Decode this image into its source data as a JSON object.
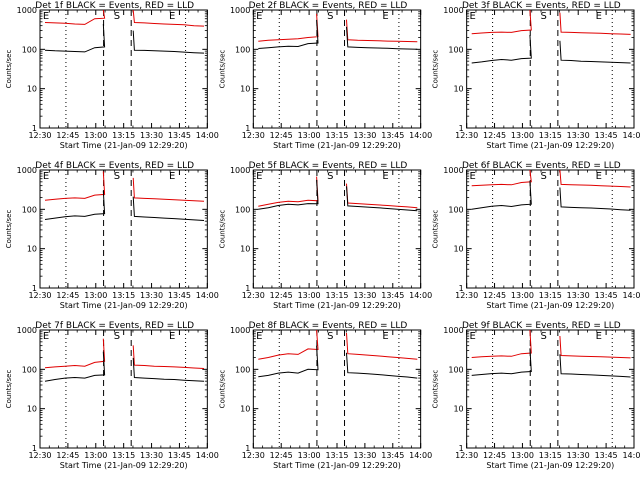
{
  "colors": {
    "events": "#000000",
    "lld": "#e00000",
    "frame": "#000000"
  },
  "chart_data": [
    {
      "type": "line",
      "title": "Det 1f BLACK = Events, RED = LLD",
      "ylabel": "Counts/sec",
      "xlabel": "Start Time (21-Jan-09 12:29:20)",
      "x_ticks": [
        "12:30",
        "12:45",
        "13:00",
        "13:15",
        "13:30",
        "13:45",
        "14:00"
      ],
      "y_ticks": [
        "1",
        "10",
        "100",
        "1000"
      ],
      "ylim": [
        1,
        1000
      ],
      "yscale": "log",
      "markers": [
        "E",
        "S",
        "E"
      ],
      "series": [
        {
          "values": [
            480,
            470,
            460,
            440,
            430,
            600,
            620,
            540,
            500,
            480,
            470,
            455,
            440,
            430,
            420,
            400,
            390
          ]
        },
        {
          "values": [
            95,
            92,
            90,
            88,
            86,
            110,
            115,
            100,
            96,
            95,
            94,
            92,
            90,
            88,
            85,
            82,
            80
          ]
        }
      ]
    },
    {
      "type": "line",
      "title": "Det 2f BLACK = Events, RED = LLD",
      "ylabel": "Counts/sec",
      "xlabel": "Start Time (21-Jan-09 12:29:20)",
      "x_ticks": [
        "12:30",
        "12:45",
        "13:00",
        "13:15",
        "13:30",
        "13:45",
        "14:00"
      ],
      "y_ticks": [
        "1",
        "10",
        "100",
        "1000"
      ],
      "ylim": [
        1,
        1000
      ],
      "yscale": "log",
      "markers": [
        "E",
        "S",
        "E"
      ],
      "series": [
        {
          "values": [
            160,
            170,
            175,
            180,
            185,
            200,
            210,
            190,
            180,
            175,
            170,
            168,
            165,
            162,
            160,
            158,
            155
          ]
        },
        {
          "values": [
            105,
            110,
            115,
            120,
            118,
            140,
            145,
            125,
            118,
            115,
            112,
            110,
            108,
            106,
            104,
            102,
            100
          ]
        }
      ]
    },
    {
      "type": "line",
      "title": "Det 3f BLACK = Events, RED = LLD",
      "ylabel": "Counts/sec",
      "xlabel": "Start Time (21-Jan-09 12:29:20)",
      "x_ticks": [
        "12:30",
        "12:45",
        "13:00",
        "13:15",
        "13:30",
        "13:45",
        "14:00"
      ],
      "y_ticks": [
        "1",
        "10",
        "100",
        "1000"
      ],
      "ylim": [
        1,
        1000
      ],
      "yscale": "log",
      "markers": [
        "E",
        "S",
        "E"
      ],
      "series": [
        {
          "values": [
            250,
            260,
            270,
            275,
            270,
            300,
            310,
            285,
            280,
            275,
            270,
            265,
            260,
            255,
            250,
            245,
            240
          ]
        },
        {
          "values": [
            45,
            48,
            52,
            55,
            53,
            58,
            60,
            55,
            54,
            53,
            52,
            50,
            49,
            48,
            47,
            46,
            45
          ]
        }
      ]
    },
    {
      "type": "line",
      "title": "Det 4f BLACK = Events, RED = LLD",
      "ylabel": "Counts/sec",
      "xlabel": "Start Time (21-Jan-09 12:29:20)",
      "x_ticks": [
        "12:30",
        "12:45",
        "13:00",
        "13:15",
        "13:30",
        "13:45",
        "14:00"
      ],
      "y_ticks": [
        "1",
        "10",
        "100",
        "1000"
      ],
      "ylim": [
        1,
        1000
      ],
      "yscale": "log",
      "markers": [
        "E",
        "S",
        "E"
      ],
      "series": [
        {
          "values": [
            170,
            180,
            190,
            195,
            190,
            230,
            240,
            210,
            200,
            195,
            190,
            185,
            180,
            175,
            170,
            165,
            160
          ]
        },
        {
          "values": [
            55,
            60,
            65,
            68,
            66,
            75,
            78,
            70,
            68,
            66,
            64,
            62,
            60,
            58,
            56,
            54,
            52
          ]
        }
      ]
    },
    {
      "type": "line",
      "title": "Det 5f BLACK = Events, RED = LLD",
      "ylabel": "Counts/sec",
      "xlabel": "Start Time (21-Jan-09 12:29:20)",
      "x_ticks": [
        "12:30",
        "12:45",
        "13:00",
        "13:15",
        "13:30",
        "13:45",
        "14:00"
      ],
      "y_ticks": [
        "1",
        "10",
        "100",
        "1000"
      ],
      "ylim": [
        1,
        1000
      ],
      "yscale": "log",
      "markers": [
        "E",
        "S",
        "E"
      ],
      "series": [
        {
          "values": [
            120,
            135,
            150,
            160,
            155,
            170,
            165,
            150,
            148,
            145,
            140,
            135,
            130,
            125,
            120,
            115,
            110
          ]
        },
        {
          "values": [
            100,
            110,
            125,
            135,
            130,
            140,
            138,
            128,
            125,
            122,
            118,
            114,
            110,
            105,
            100,
            96,
            92
          ]
        }
      ]
    },
    {
      "type": "line",
      "title": "Det 6f BLACK = Events, RED = LLD",
      "ylabel": "Counts/sec",
      "xlabel": "Start Time (21-Jan-09 12:29:20)",
      "x_ticks": [
        "12:30",
        "12:45",
        "13:00",
        "13:15",
        "13:30",
        "13:45",
        "14:00"
      ],
      "y_ticks": [
        "1",
        "10",
        "100",
        "1000"
      ],
      "ylim": [
        1,
        1000
      ],
      "yscale": "log",
      "markers": [
        "E",
        "S",
        "E"
      ],
      "series": [
        {
          "values": [
            400,
            410,
            420,
            430,
            420,
            480,
            500,
            450,
            440,
            430,
            420,
            415,
            410,
            400,
            390,
            380,
            370
          ]
        },
        {
          "values": [
            100,
            110,
            120,
            125,
            118,
            130,
            135,
            120,
            118,
            115,
            112,
            110,
            108,
            105,
            102,
            98,
            95
          ]
        }
      ]
    },
    {
      "type": "line",
      "title": "Det 7f BLACK = Events, RED = LLD",
      "ylabel": "Counts/sec",
      "xlabel": "Start Time (21-Jan-09 12:29:20)",
      "x_ticks": [
        "12:30",
        "12:45",
        "13:00",
        "13:15",
        "13:30",
        "13:45",
        "14:00"
      ],
      "y_ticks": [
        "1",
        "10",
        "100",
        "1000"
      ],
      "ylim": [
        1,
        1000
      ],
      "yscale": "log",
      "markers": [
        "E",
        "S",
        "E"
      ],
      "series": [
        {
          "values": [
            110,
            115,
            120,
            125,
            120,
            150,
            160,
            135,
            130,
            128,
            125,
            120,
            118,
            115,
            112,
            108,
            105
          ]
        },
        {
          "values": [
            50,
            55,
            60,
            62,
            60,
            70,
            72,
            65,
            63,
            62,
            60,
            58,
            56,
            55,
            53,
            51,
            50
          ]
        }
      ]
    },
    {
      "type": "line",
      "title": "Det 8f BLACK = Events, RED = LLD",
      "ylabel": "Counts/sec",
      "xlabel": "Start Time (21-Jan-09 12:29:20)",
      "x_ticks": [
        "12:30",
        "12:45",
        "13:00",
        "13:15",
        "13:30",
        "13:45",
        "14:00"
      ],
      "y_ticks": [
        "1",
        "10",
        "100",
        "1000"
      ],
      "ylim": [
        1,
        1000
      ],
      "yscale": "log",
      "markers": [
        "E",
        "S",
        "E"
      ],
      "series": [
        {
          "values": [
            180,
            200,
            230,
            250,
            240,
            330,
            320,
            280,
            260,
            250,
            240,
            230,
            220,
            210,
            200,
            190,
            180
          ]
        },
        {
          "values": [
            65,
            70,
            80,
            85,
            80,
            100,
            98,
            88,
            84,
            82,
            80,
            77,
            74,
            70,
            67,
            64,
            60
          ]
        }
      ]
    },
    {
      "type": "line",
      "title": "Det 9f BLACK = Events, RED = LLD",
      "ylabel": "Counts/sec",
      "xlabel": "Start Time (21-Jan-09 12:29:20)",
      "x_ticks": [
        "12:30",
        "12:45",
        "13:00",
        "13:15",
        "13:30",
        "13:45",
        "14:00"
      ],
      "y_ticks": [
        "1",
        "10",
        "100",
        "1000"
      ],
      "ylim": [
        1,
        1000
      ],
      "yscale": "log",
      "markers": [
        "E",
        "S",
        "E"
      ],
      "series": [
        {
          "values": [
            200,
            210,
            215,
            220,
            215,
            250,
            260,
            235,
            230,
            225,
            220,
            215,
            212,
            208,
            205,
            200,
            195
          ]
        },
        {
          "values": [
            70,
            74,
            78,
            80,
            77,
            85,
            88,
            80,
            78,
            77,
            76,
            74,
            72,
            70,
            68,
            66,
            64
          ]
        }
      ]
    }
  ]
}
